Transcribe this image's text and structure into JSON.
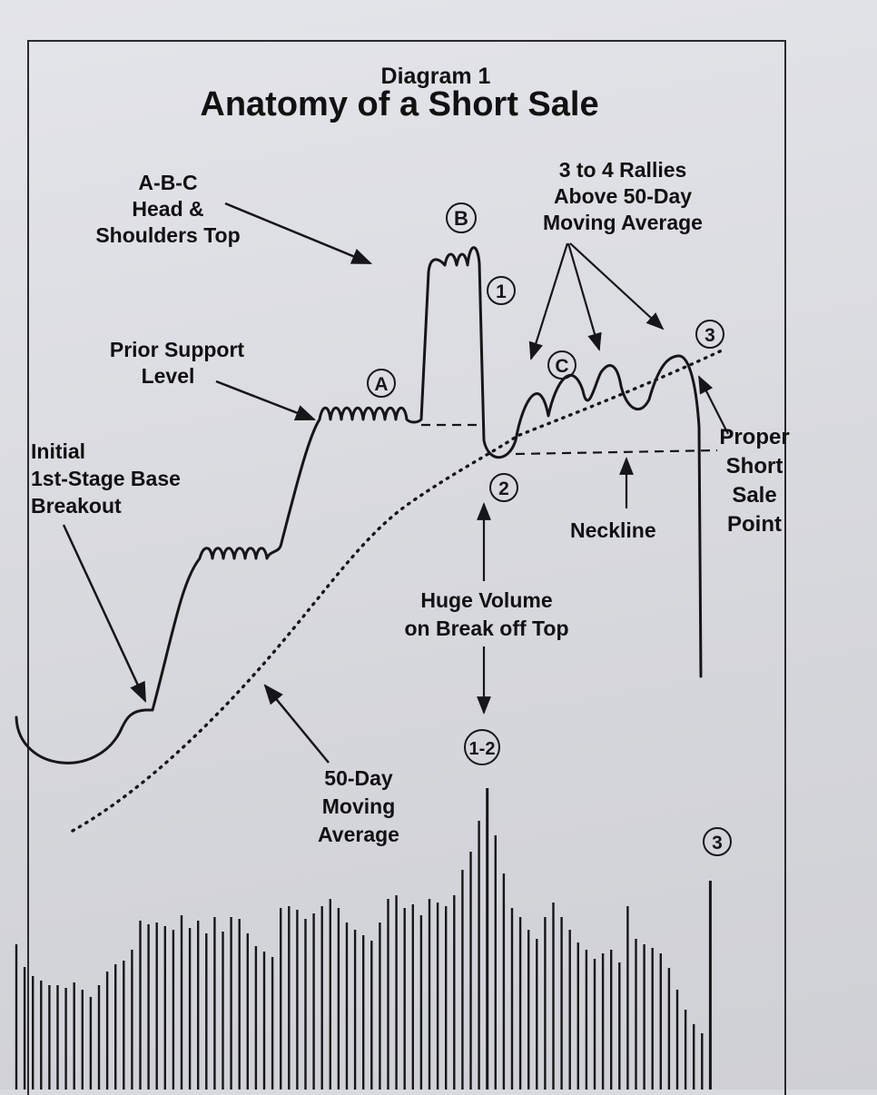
{
  "header": {
    "kicker": "Diagram 1",
    "title": "Anatomy of a Short Sale"
  },
  "labels": {
    "abc_head_shoulders": [
      "A-B-C",
      "Head &",
      "Shoulders Top"
    ],
    "rallies": [
      "3 to 4 Rallies",
      "Above 50-Day",
      "Moving Average"
    ],
    "prior_support": [
      "Prior Support",
      "Level"
    ],
    "initial_breakout": [
      "Initial",
      "1st-Stage Base",
      "Breakout"
    ],
    "proper_short": [
      "Proper",
      "Short",
      "Sale",
      "Point"
    ],
    "neckline": "Neckline",
    "huge_volume": [
      "Huge Volume",
      "on Break off Top"
    ],
    "moving_average": [
      "50-Day",
      "Moving",
      "Average"
    ]
  },
  "markers": {
    "a": "A",
    "b": "B",
    "c": "C",
    "one": "1",
    "two": "2",
    "three_top": "3",
    "one_two": "1-2",
    "three_bottom": "3"
  },
  "colors": {
    "ink": "#161618",
    "paper": "#dedfe4"
  }
}
